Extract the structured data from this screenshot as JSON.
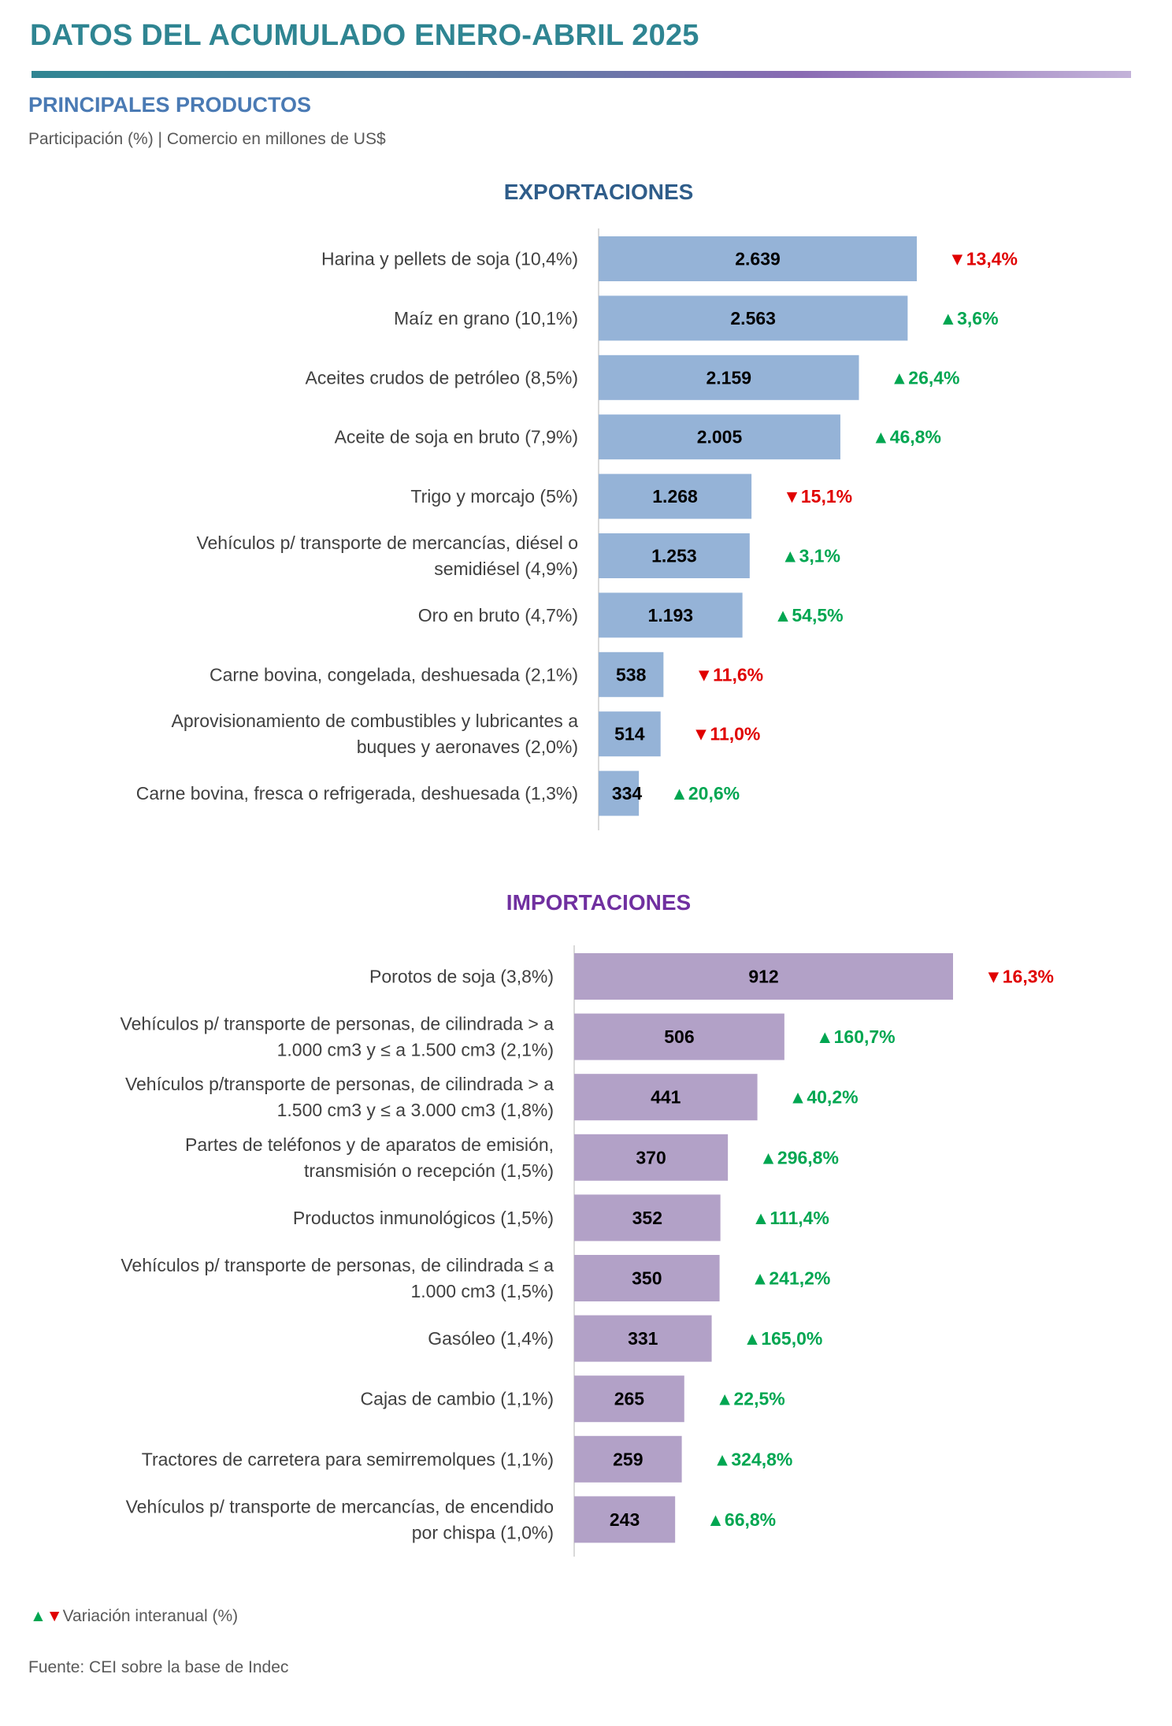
{
  "header": {
    "title": "DATOS DEL ACUMULADO ENERO-ABRIL 2025",
    "section_title": "PRINCIPALES PRODUCTOS",
    "section_subtitle": "Participación (%) | Comercio en millones de US$"
  },
  "colors": {
    "exports_bar": "#95b3d7",
    "imports_bar": "#b2a1c7",
    "up": "#00a651",
    "down": "#e00000"
  },
  "chart_data": [
    {
      "type": "bar",
      "orientation": "horizontal",
      "title": "EXPORTACIONES",
      "categories": [
        "Harina y pellets de soja (10,4%)",
        "Maíz en grano (10,1%)",
        "Aceites crudos de petróleo (8,5%)",
        "Aceite de soja en bruto (7,9%)",
        "Trigo y morcajo (5%)",
        "Vehículos p/ transporte de mercancías, diésel o semidiésel (4,9%)",
        "Oro en bruto (4,7%)",
        "Carne bovina, congelada, deshuesada (2,1%)",
        "Aprovisionamiento de combustibles y lubricantes a buques y aeronaves (2,0%)",
        "Carne bovina, fresca o refrigerada, deshuesada (1,3%)"
      ],
      "values": [
        2639,
        2563,
        2159,
        2005,
        1268,
        1253,
        1193,
        538,
        514,
        334
      ],
      "value_labels": [
        "2.639",
        "2.563",
        "2.159",
        "2.005",
        "1.268",
        "1.253",
        "1.193",
        "538",
        "514",
        "334"
      ],
      "variation_labels": [
        "13,4%",
        "3,6%",
        "26,4%",
        "46,8%",
        "15,1%",
        "3,1%",
        "54,5%",
        "11,6%",
        "11,0%",
        "20,6%"
      ],
      "variation_direction": [
        "down",
        "up",
        "up",
        "up",
        "down",
        "up",
        "up",
        "down",
        "down",
        "up"
      ]
    },
    {
      "type": "bar",
      "orientation": "horizontal",
      "title": "IMPORTACIONES",
      "categories": [
        "Porotos de soja (3,8%)",
        "Vehículos p/ transporte de personas, de cilindrada > a 1.000 cm3 y ≤ a 1.500 cm3 (2,1%)",
        "Vehículos p/transporte de personas, de cilindrada > a 1.500 cm3 y ≤ a 3.000 cm3 (1,8%)",
        "Partes de teléfonos y de aparatos de emisión, transmisión o recepción (1,5%)",
        "Productos inmunológicos (1,5%)",
        "Vehículos p/ transporte de personas, de cilindrada ≤ a 1.000 cm3 (1,5%)",
        "Gasóleo (1,4%)",
        "Cajas de cambio (1,1%)",
        "Tractores de carretera para semirremolques (1,1%)",
        "Vehículos p/ transporte de mercancías, de encendido por chispa (1,0%)"
      ],
      "values": [
        912,
        506,
        441,
        370,
        352,
        350,
        331,
        265,
        259,
        243
      ],
      "value_labels": [
        "912",
        "506",
        "441",
        "370",
        "352",
        "350",
        "331",
        "265",
        "259",
        "243"
      ],
      "variation_labels": [
        "16,3%",
        "160,7%",
        "40,2%",
        "296,8%",
        "111,4%",
        "241,2%",
        "165,0%",
        "22,5%",
        "324,8%",
        "66,8%"
      ],
      "variation_direction": [
        "down",
        "up",
        "up",
        "up",
        "up",
        "up",
        "up",
        "up",
        "up",
        "up"
      ]
    }
  ],
  "legend": {
    "text": "Variación interanual (%)"
  },
  "footer": {
    "source": "Fuente: CEI sobre la base de Indec"
  }
}
